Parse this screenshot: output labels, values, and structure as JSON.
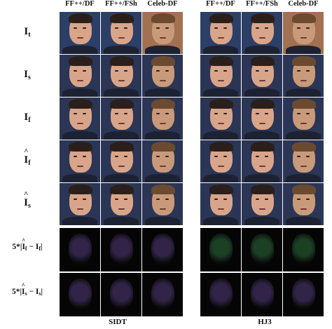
{
  "figure": {
    "columns": [
      "FF++/DF",
      "FF++/FSh",
      "Celeb-DF",
      "FF++/DF",
      "FF++/FSh",
      "Celeb-DF"
    ],
    "methods": [
      "SIDT",
      "HJ3"
    ],
    "rows": [
      {
        "base": "I",
        "sub": "t",
        "hat": false,
        "scale": "",
        "kind": "face"
      },
      {
        "base": "I",
        "sub": "s",
        "hat": false,
        "scale": "",
        "kind": "face"
      },
      {
        "base": "I",
        "sub": "f",
        "hat": false,
        "scale": "",
        "kind": "face"
      },
      {
        "base": "I",
        "sub": "f",
        "hat": true,
        "scale": "",
        "kind": "face"
      },
      {
        "base": "I",
        "sub": "s",
        "hat": true,
        "scale": "",
        "kind": "face"
      },
      {
        "base": "I",
        "sub": "f",
        "hat": false,
        "scale": "5*",
        "kind": "diff"
      },
      {
        "base": "I",
        "sub": "s",
        "hat": false,
        "scale": "5*",
        "kind": "diff"
      }
    ],
    "colors": {
      "target_bg": "#2c3f66",
      "target_bg_celeb": "#a27152",
      "source_bg": "#2b3555",
      "skin": "#d9a58a",
      "skin_celeb": "#c89a7a",
      "hair_dark": "#2a1f1a",
      "hair_celeb": "#6b4a30",
      "suit": "#1d2233",
      "diff_bg": "#050505",
      "diff_sidt": "#3a2a55",
      "diff_hj3": "#1f4a2a"
    }
  }
}
